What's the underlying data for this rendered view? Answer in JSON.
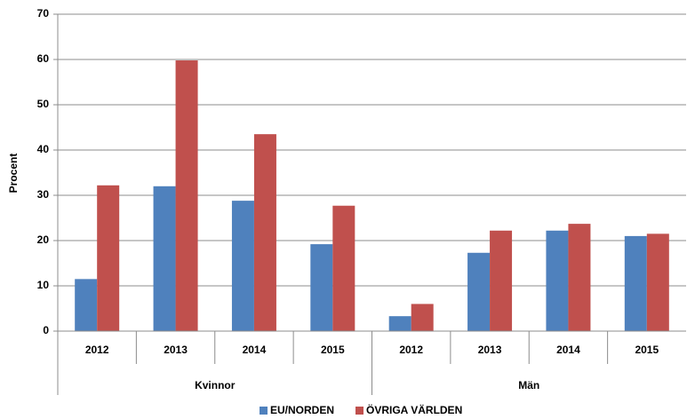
{
  "chart_data": {
    "type": "bar",
    "y_label": "Procent",
    "groups": [
      {
        "name": "Kvinnor",
        "categories": [
          "2012",
          "2013",
          "2014",
          "2015"
        ]
      },
      {
        "name": "Män",
        "categories": [
          "2012",
          "2013",
          "2014",
          "2015"
        ]
      }
    ],
    "series": [
      {
        "name": "EU/NORDEN",
        "color": "#4f81bd",
        "values": [
          11.5,
          32,
          28.8,
          19.2,
          3.3,
          17.3,
          22.2,
          21
        ]
      },
      {
        "name": "ÖVRIGA VÄRLDEN",
        "color": "#c0504d",
        "values": [
          32.2,
          59.8,
          43.5,
          27.7,
          6,
          22.2,
          23.7,
          21.5
        ]
      }
    ],
    "ylim": [
      0,
      70
    ],
    "yticks": [
      0,
      10,
      20,
      30,
      40,
      50,
      60,
      70
    ],
    "grid": true,
    "legend": "bottom"
  }
}
